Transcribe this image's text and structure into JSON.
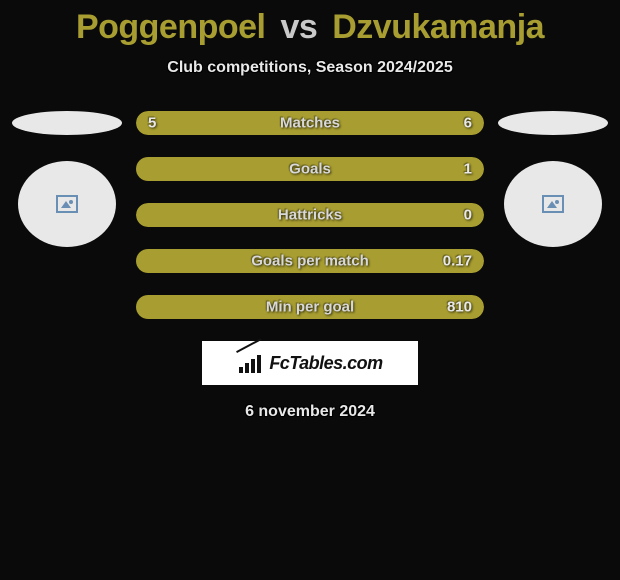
{
  "header": {
    "player1": "Poggenpoel",
    "vs": "vs",
    "player2": "Dzvukamanja"
  },
  "subtitle": "Club competitions, Season 2024/2025",
  "colors": {
    "player1_fill": "#a79d30",
    "player2_fill": "#a79d30",
    "bar_track": "#0a0a0a",
    "background": "#0a0a0a",
    "oval": "#e8e8e8",
    "circle": "#e8e8e8",
    "text_light": "#e8e8e8",
    "label_text": "#d8d8d8"
  },
  "stats": [
    {
      "label": "Matches",
      "left_value": "5",
      "right_value": "6",
      "left_pct": 45,
      "right_pct": 55,
      "left_color": "#a79d30",
      "right_color": "#a79d30"
    },
    {
      "label": "Goals",
      "left_value": "",
      "right_value": "1",
      "left_pct": 0,
      "right_pct": 100,
      "left_color": "#a79d30",
      "right_color": "#a79d30"
    },
    {
      "label": "Hattricks",
      "left_value": "",
      "right_value": "0",
      "left_pct": 100,
      "right_pct": 0,
      "left_color": "#a79d30",
      "right_color": "#a79d30",
      "full_fill": true
    },
    {
      "label": "Goals per match",
      "left_value": "",
      "right_value": "0.17",
      "left_pct": 0,
      "right_pct": 100,
      "left_color": "#a79d30",
      "right_color": "#a79d30"
    },
    {
      "label": "Min per goal",
      "left_value": "",
      "right_value": "810",
      "left_pct": 0,
      "right_pct": 100,
      "left_color": "#a79d30",
      "right_color": "#a79d30"
    }
  ],
  "logo_text": "FcTables.com",
  "date": "6 november 2024"
}
